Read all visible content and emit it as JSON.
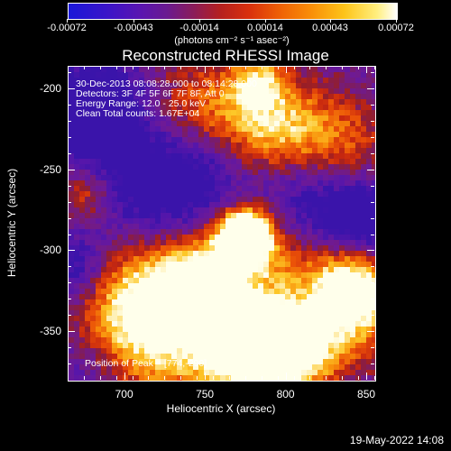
{
  "colorbar": {
    "labels": [
      "-0.00072",
      "-0.00043",
      "-0.00014",
      "0.00014",
      "0.00043",
      "0.00072"
    ],
    "units": "(photons cm⁻² s⁻¹ asec⁻²)"
  },
  "title": "Reconstructed RHESSI Image",
  "info": {
    "line1": "30-Dec-2013 08:08:28.000 to 08:14:28.000",
    "line2": "Detectors: 3F 4F 5F 6F 7F 8F, Att 0",
    "line3": "Energy Range: 12.0 - 25.0 keV",
    "line4": "Clean     Total counts: 1.67E+04",
    "peak": "Position of Peak = [774,-290]"
  },
  "axes": {
    "xlabel": "Heliocentric X (arcsec)",
    "ylabel": "Heliocentric Y (arcsec)",
    "xticks": [
      "700",
      "750",
      "800",
      "850"
    ],
    "yticks": [
      "-200",
      "-250",
      "-300",
      "-350"
    ]
  },
  "footer": {
    "timestamp": "19-May-2022 14:08"
  },
  "chart_data": {
    "type": "heatmap",
    "title": "Reconstructed RHESSI Image",
    "xlabel": "Heliocentric X (arcsec)",
    "ylabel": "Heliocentric Y (arcsec)",
    "xlim": [
      665,
      855
    ],
    "ylim": [
      -380,
      -186
    ],
    "clim": [
      -0.00072,
      0.00072
    ],
    "colormap": [
      "#1a17d8",
      "#6a1a90",
      "#b42020",
      "#ee5f06",
      "#fdc419",
      "#ffffff"
    ],
    "peak": [
      774,
      -290
    ]
  }
}
